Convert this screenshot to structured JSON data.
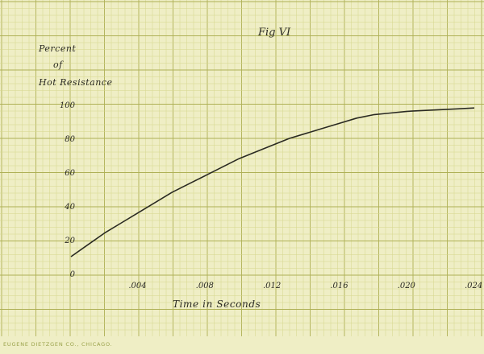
{
  "chart_data": {
    "type": "line",
    "title": "Fig VI",
    "ylabel_lines": [
      "Percent",
      "of",
      "Hot Resistance"
    ],
    "xlabel": "Time in Seconds",
    "x_ticks": [
      ".004",
      ".008",
      ".012",
      ".016",
      ".020",
      ".024"
    ],
    "y_ticks": [
      "0",
      "20",
      "40",
      "60",
      "80",
      "100"
    ],
    "xlim": [
      0,
      0.024
    ],
    "ylim": [
      0,
      100
    ],
    "grid": true,
    "series": [
      {
        "x": [
          0.0,
          0.001,
          0.002,
          0.003,
          0.004,
          0.005,
          0.006,
          0.007,
          0.008,
          0.009,
          0.01,
          0.011,
          0.012,
          0.013,
          0.014,
          0.015,
          0.016,
          0.017,
          0.018,
          0.019,
          0.02,
          0.021,
          0.022,
          0.023,
          0.024
        ],
        "y": [
          10,
          17,
          24,
          30,
          36,
          42,
          48,
          53,
          58,
          63,
          68,
          72,
          76,
          80,
          83,
          86,
          89,
          92,
          94,
          95,
          96,
          96.5,
          97,
          97.5,
          98
        ]
      }
    ],
    "colors": {
      "paper": "#efeec5",
      "grid_minor": "#d5d68c",
      "grid_major": "#aeb055",
      "curve": "#2a2a22"
    }
  },
  "footer": "EUGENE DIETZGEN CO., CHICAGO."
}
